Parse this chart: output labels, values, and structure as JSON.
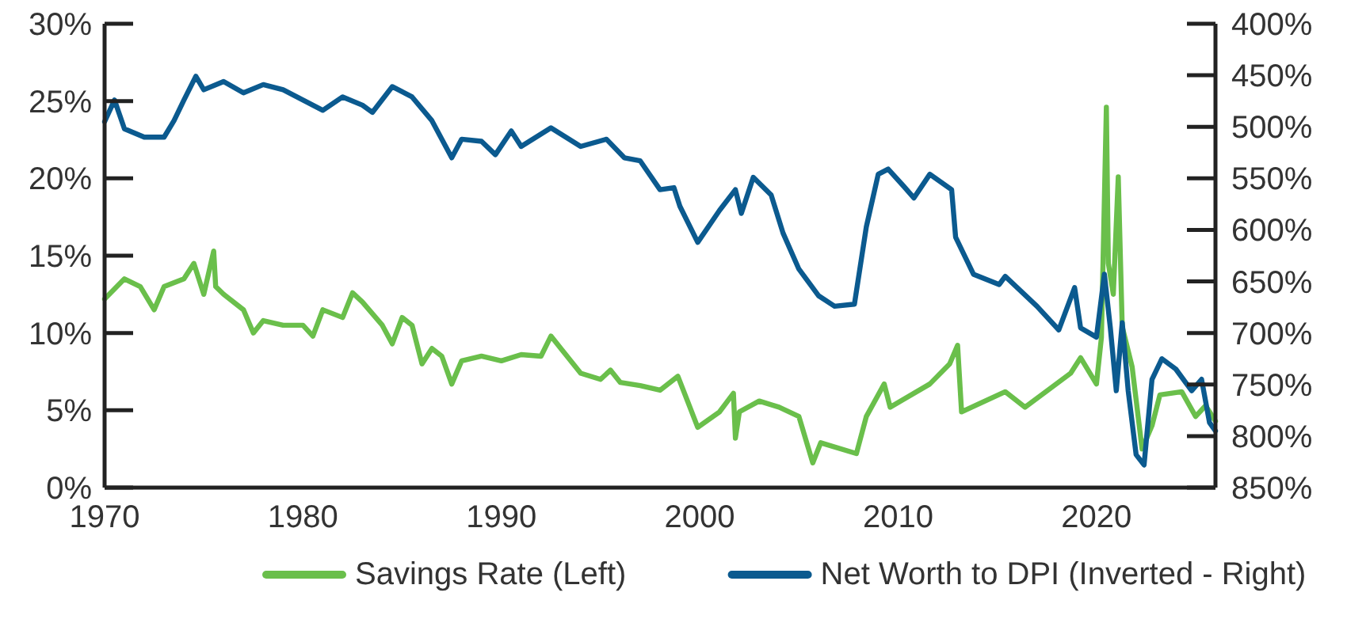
{
  "chart_data": {
    "type": "line",
    "xlim": [
      1970,
      2026
    ],
    "xticks": [
      1970,
      1980,
      1990,
      2000,
      2010,
      2020
    ],
    "ylim": [
      0,
      30
    ],
    "yticks": [
      {
        "value": 0,
        "label": "0%"
      },
      {
        "value": 5,
        "label": "5%"
      },
      {
        "value": 10,
        "label": "10%"
      },
      {
        "value": 15,
        "label": "15%"
      },
      {
        "value": 20,
        "label": "20%"
      },
      {
        "value": 25,
        "label": "25%"
      },
      {
        "value": 30,
        "label": "30%"
      }
    ],
    "y2lim": [
      850,
      400
    ],
    "y2ticks": [
      {
        "value": 400,
        "label": "400%"
      },
      {
        "value": 450,
        "label": "450%"
      },
      {
        "value": 500,
        "label": "500%"
      },
      {
        "value": 550,
        "label": "550%"
      },
      {
        "value": 600,
        "label": "600%"
      },
      {
        "value": 650,
        "label": "650%"
      },
      {
        "value": 700,
        "label": "700%"
      },
      {
        "value": 750,
        "label": "750%"
      },
      {
        "value": 800,
        "label": "800%"
      },
      {
        "value": 850,
        "label": "850%"
      }
    ],
    "legend": "bottom",
    "grid": false,
    "series": [
      {
        "name": "Savings Rate (Left)",
        "color": "#6abf4b",
        "x": [
          1970,
          1971,
          1971.8,
          1972.5,
          1973,
          1974,
          1974.5,
          1975,
          1975.5,
          1975.6,
          1976,
          1977,
          1977.5,
          1978,
          1979,
          1980,
          1980.5,
          1981,
          1982,
          1982.5,
          1983,
          1984,
          1984.5,
          1985,
          1985.5,
          1986,
          1986.5,
          1987,
          1987.5,
          1988,
          1989,
          1990,
          1991,
          1992,
          1992.5,
          1993,
          1994,
          1995,
          1995.5,
          1996,
          1997,
          1998,
          1998.9,
          1999.9,
          2001,
          2001.7,
          2001.8,
          2002,
          2003,
          2004,
          2005,
          2005.7,
          2006.1,
          2007.9,
          2008.4,
          2009.3,
          2009.6,
          2011.6,
          2012.6,
          2013,
          2013.2,
          2015.4,
          2016.4,
          2018.7,
          2019.2,
          2020,
          2020.25,
          2020.5,
          2020.6,
          2020.85,
          2021.1,
          2021.3,
          2021.8,
          2022.3,
          2022.8,
          2023.2,
          2024.3,
          2025,
          2025.5,
          2026
        ],
        "values": [
          12.2,
          13.5,
          13,
          11.5,
          13,
          13.5,
          14.5,
          12.5,
          15.3,
          13,
          12.5,
          11.5,
          10,
          10.8,
          10.5,
          10.5,
          9.8,
          11.5,
          11,
          12.6,
          12,
          10.5,
          9.3,
          11,
          10.5,
          8,
          9,
          8.5,
          6.7,
          8.2,
          8.5,
          8.2,
          8.6,
          8.5,
          9.8,
          9,
          7.4,
          7,
          7.6,
          6.8,
          6.6,
          6.3,
          7.2,
          3.9,
          4.9,
          6.1,
          3.2,
          4.9,
          5.6,
          5.2,
          4.6,
          1.6,
          2.9,
          2.2,
          4.6,
          6.7,
          5.2,
          6.7,
          8,
          9.2,
          4.9,
          6.2,
          5.2,
          7.4,
          8.4,
          6.7,
          9.7,
          24.6,
          14.5,
          12.5,
          20.1,
          10.4,
          7.8,
          2.5,
          4,
          6,
          6.2,
          4.6,
          5.3,
          4.3
        ]
      },
      {
        "name": "Net Worth to DPI (Inverted - Right)",
        "color": "#0b5a8f",
        "axis": "y2",
        "x": [
          1970,
          1970.5,
          1971,
          1972,
          1973,
          1973.5,
          1974,
          1974.6,
          1975,
          1976,
          1977,
          1978,
          1979,
          1980,
          1981,
          1982,
          1983,
          1983.5,
          1984.5,
          1985.5,
          1986.5,
          1987.5,
          1988,
          1989,
          1989.7,
          1990.5,
          1991,
          1992.5,
          1994,
          1995.3,
          1996.2,
          1997,
          1998,
          1998.7,
          1999,
          1999.9,
          2001,
          2001.8,
          2002.1,
          2002.7,
          2003.6,
          2004.2,
          2005,
          2006,
          2006.8,
          2007.8,
          2008.4,
          2009,
          2009.5,
          2010.3,
          2010.8,
          2011.6,
          2012.7,
          2012.9,
          2013.8,
          2015.1,
          2015.4,
          2017,
          2018.1,
          2018.9,
          2019.2,
          2020,
          2020.4,
          2020.7,
          2021,
          2021.3,
          2021.6,
          2022,
          2022.4,
          2022.8,
          2023.3,
          2024,
          2024.8,
          2025.3,
          2025.7,
          2026
        ],
        "values": [
          495,
          474,
          502,
          510,
          510,
          494,
          474,
          451,
          464,
          456,
          467,
          459,
          464,
          474,
          484,
          471,
          479,
          486,
          461,
          471,
          494,
          530,
          512,
          514,
          527,
          504,
          519,
          501,
          519,
          512,
          530,
          533,
          561,
          559,
          577,
          612,
          581,
          561,
          584,
          549,
          566,
          603,
          638,
          664,
          674,
          672,
          597,
          546,
          541,
          558,
          569,
          546,
          561,
          607,
          643,
          653,
          645,
          674,
          697,
          656,
          695,
          704,
          643,
          695,
          756,
          690,
          756,
          818,
          828,
          745,
          725,
          735,
          756,
          745,
          787,
          795
        ]
      }
    ]
  }
}
